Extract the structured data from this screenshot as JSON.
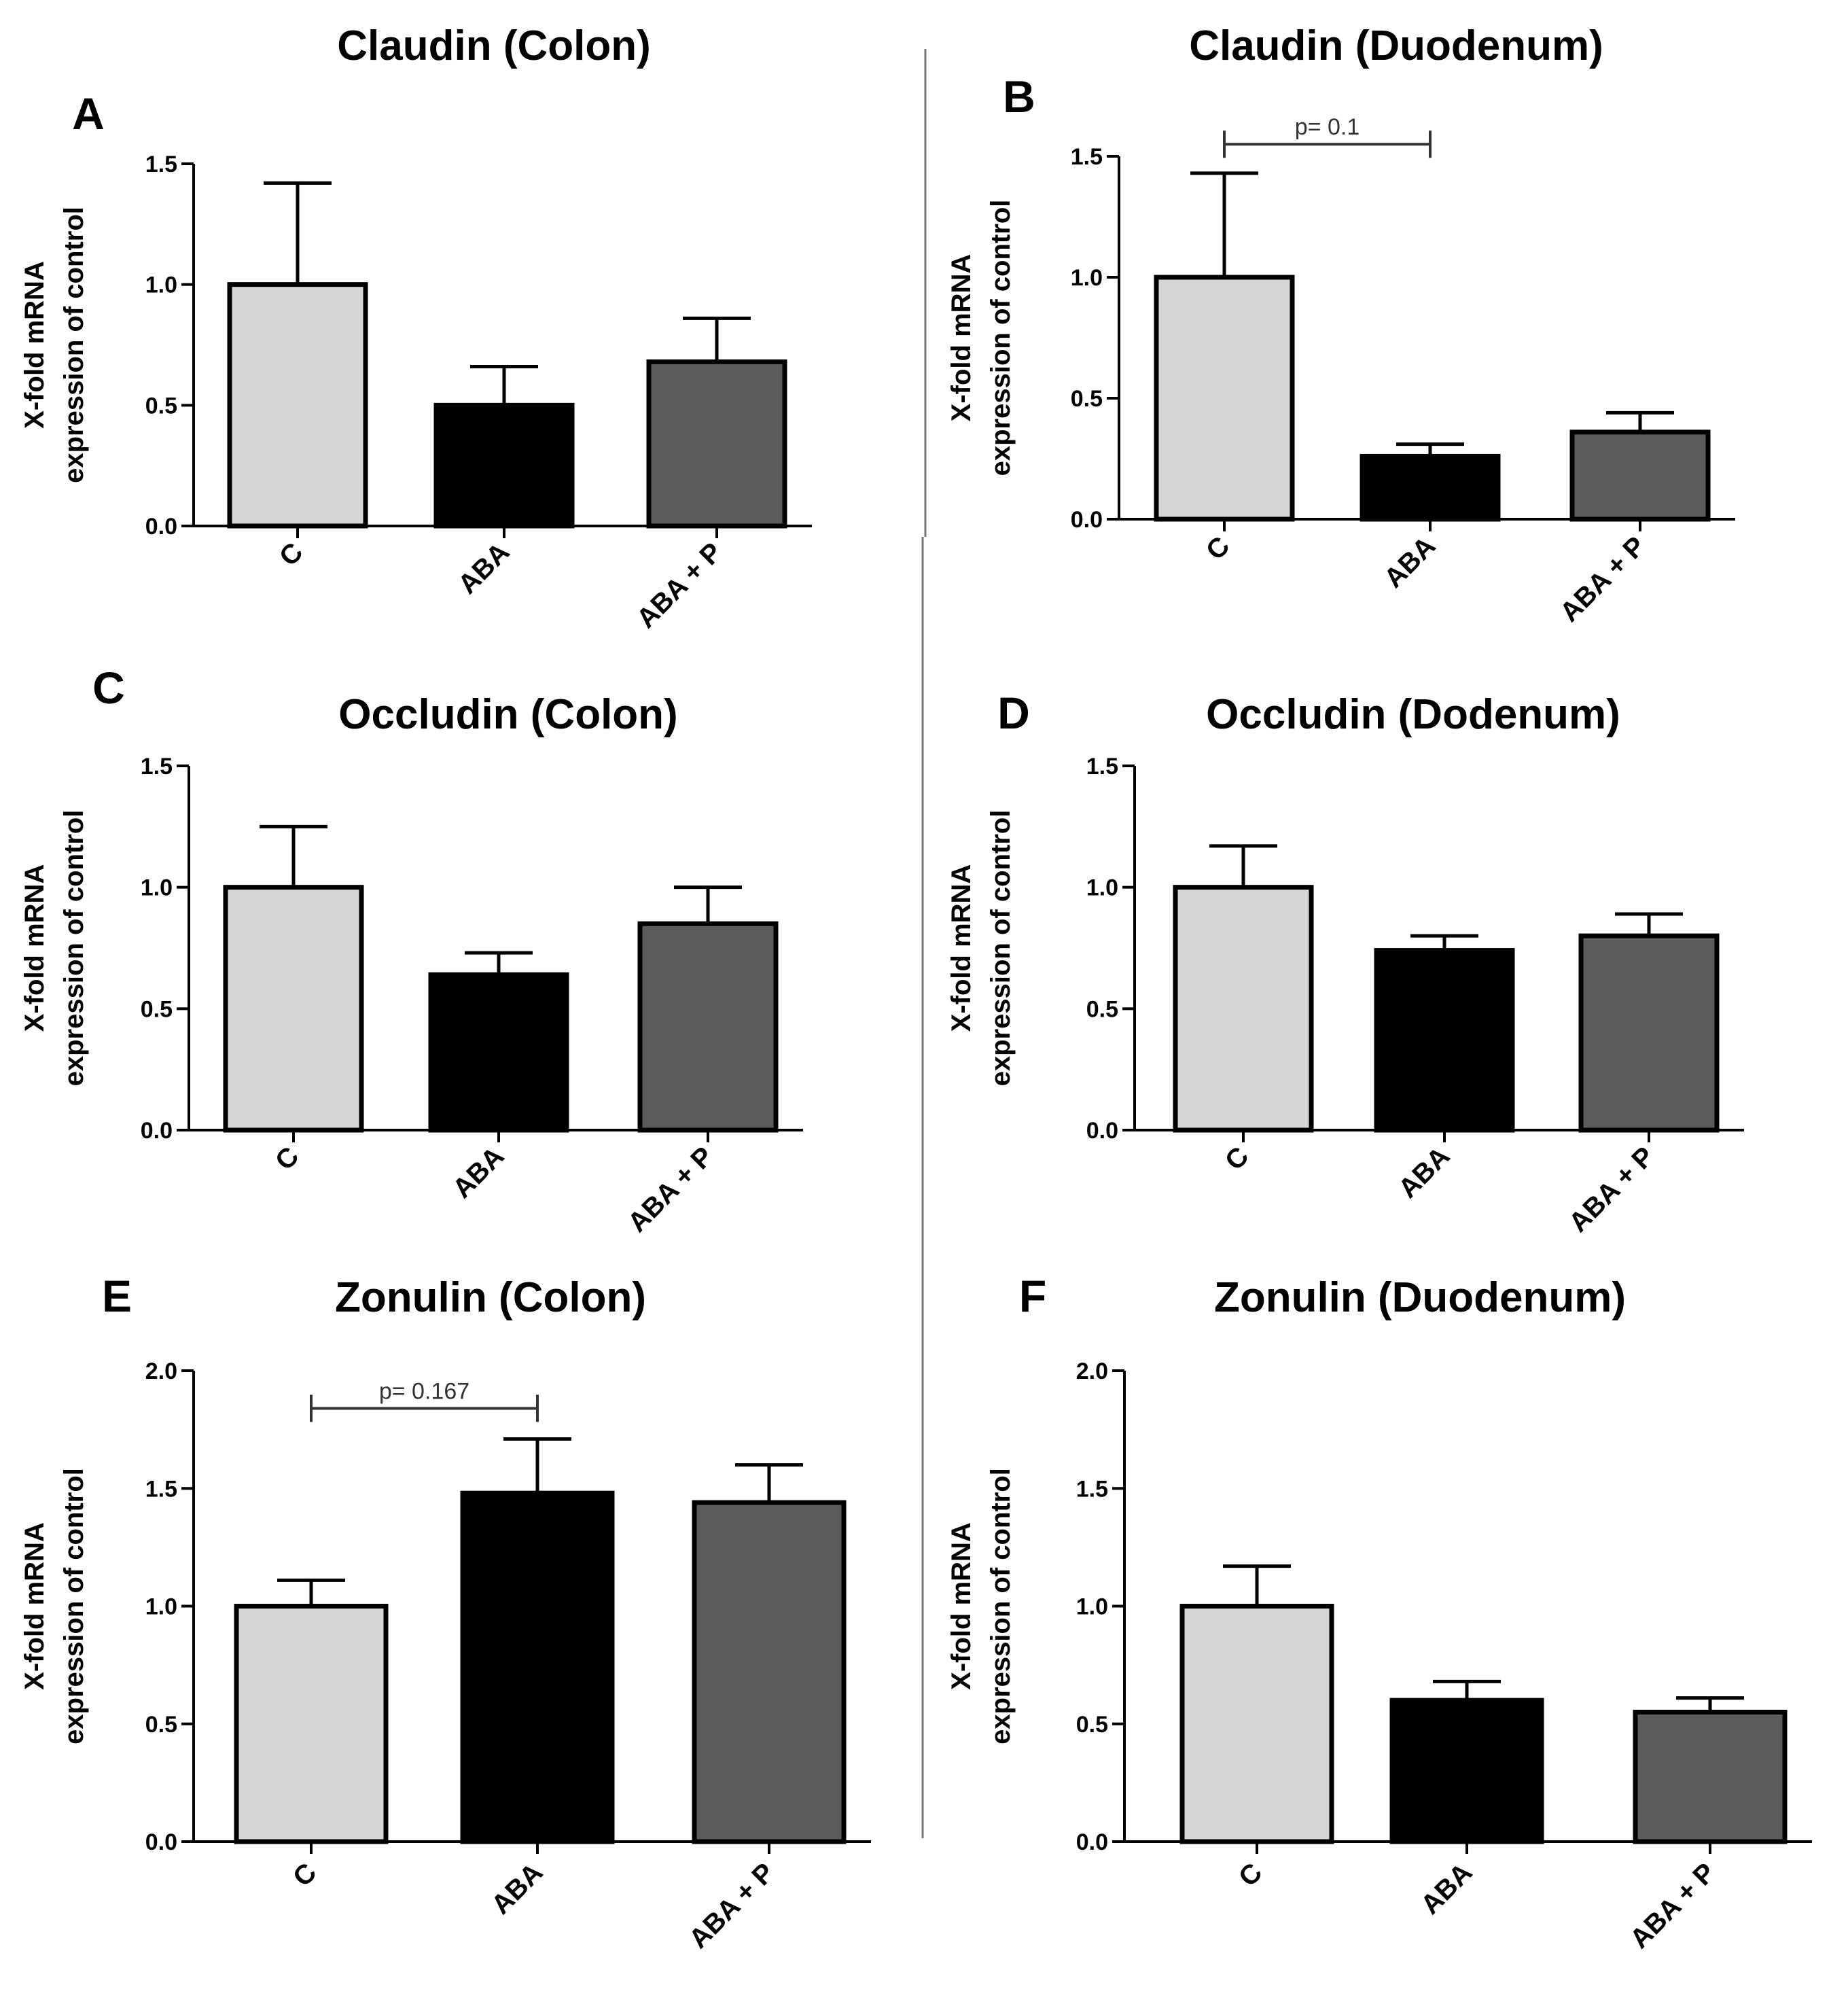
{
  "figure": {
    "colors": {
      "C": "#d6d6d6",
      "ABA": "#000000",
      "ABA + P": "#5c5c5c",
      "outline": "#000000",
      "divider": "#777777"
    }
  },
  "chart_data": [
    {
      "panel": "A",
      "type": "bar",
      "title": "Claudin (Colon)",
      "ylabel": [
        "X-fold mRNA",
        "expression of control"
      ],
      "categories": [
        "C",
        "ABA",
        "ABA + P"
      ],
      "values": [
        1.0,
        0.5,
        0.68
      ],
      "errors": [
        0.42,
        0.16,
        0.18
      ],
      "ylim": [
        0,
        1.5
      ],
      "yticks": [
        "0.0",
        "0.5",
        "1.0",
        "1.5"
      ],
      "annotation": null
    },
    {
      "panel": "B",
      "type": "bar",
      "title": "Claudin (Duodenum)",
      "ylabel": [
        "X-fold mRNA",
        "expression of control"
      ],
      "categories": [
        "C",
        "ABA",
        "ABA + P"
      ],
      "values": [
        1.0,
        0.26,
        0.36
      ],
      "errors": [
        0.43,
        0.05,
        0.08
      ],
      "ylim": [
        0,
        1.5
      ],
      "yticks": [
        "0.0",
        "0.5",
        "1.0",
        "1.5"
      ],
      "annotation": {
        "text": "p= 0.1",
        "from": 0,
        "to": 1,
        "y": 1.55
      }
    },
    {
      "panel": "C",
      "type": "bar",
      "title": "Occludin (Colon)",
      "ylabel": [
        "X-fold mRNA",
        "expression of control"
      ],
      "categories": [
        "C",
        "ABA",
        "ABA + P"
      ],
      "values": [
        1.0,
        0.64,
        0.85
      ],
      "errors": [
        0.25,
        0.09,
        0.15
      ],
      "ylim": [
        0,
        1.5
      ],
      "yticks": [
        "0.0",
        "0.5",
        "1.0",
        "1.5"
      ],
      "annotation": null
    },
    {
      "panel": "D",
      "type": "bar",
      "title": "Occludin (Dodenum)",
      "ylabel": [
        "X-fold mRNA",
        "expression of control"
      ],
      "categories": [
        "C",
        "ABA",
        "ABA + P"
      ],
      "values": [
        1.0,
        0.74,
        0.8
      ],
      "errors": [
        0.17,
        0.06,
        0.09
      ],
      "ylim": [
        0,
        1.5
      ],
      "yticks": [
        "0.0",
        "0.5",
        "1.0",
        "1.5"
      ],
      "annotation": null
    },
    {
      "panel": "E",
      "type": "bar",
      "title": "Zonulin (Colon)",
      "ylabel": [
        "X-fold mRNA",
        "expression of control"
      ],
      "categories": [
        "C",
        "ABA",
        "ABA + P"
      ],
      "values": [
        1.0,
        1.48,
        1.44
      ],
      "errors": [
        0.11,
        0.23,
        0.16
      ],
      "ylim": [
        0,
        2.0
      ],
      "yticks": [
        "0.0",
        "0.5",
        "1.0",
        "1.5",
        "2.0"
      ],
      "annotation": {
        "text": "p= 0.167",
        "from": 0,
        "to": 1,
        "y": 1.84
      }
    },
    {
      "panel": "F",
      "type": "bar",
      "title": "Zonulin (Duodenum)",
      "ylabel": [
        "X-fold mRNA",
        "expression of control"
      ],
      "categories": [
        "C",
        "ABA",
        "ABA + P"
      ],
      "values": [
        1.0,
        0.6,
        0.55
      ],
      "errors": [
        0.17,
        0.08,
        0.06
      ],
      "ylim": [
        0,
        2.0
      ],
      "yticks": [
        "0.0",
        "0.5",
        "1.0",
        "1.5",
        "2.0"
      ],
      "annotation": null
    }
  ]
}
